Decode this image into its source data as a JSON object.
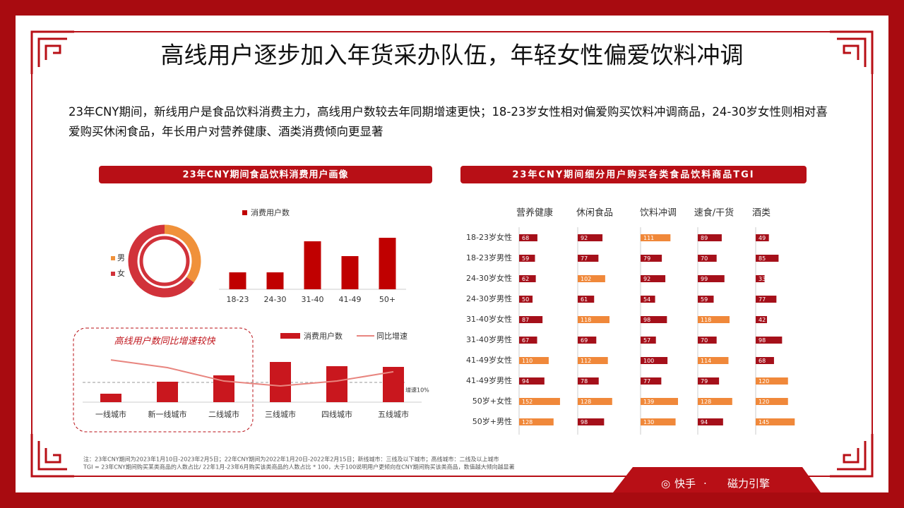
{
  "title": "高线用户逐步加入年货采办队伍，年轻女性偏爱饮料冲调",
  "summary": "23年CNY期间，新线用户是食品饮料消费主力，高线用户数较去年同期增速更快；18-23岁女性相对偏爱购买饮料冲调商品，24-30岁女性则相对喜爱购买休闲食品，年长用户对营养健康、酒类消费倾向更显著",
  "panels": [
    "23年CNY期间食品饮料消费用户画像",
    "23年CNY期间细分用户购买各类食品饮料商品TGI"
  ],
  "footnotes": [
    "注：23年CNY期间为2023年1月10日-2023年2月5日；22年CNY期间为2022年1月20日-2022年2月15日；新线城市：三线及以下城市；高线城市：二线及以上城市",
    "TGI = 23年CNY期间购买某类商品的人数占比/ 22年1月-23年6月购买该类商品的人数占比 * 100，大于100说明用户更倾向在CNY期间购买该类商品，数值越大倾向越显著"
  ],
  "brand": {
    "left": "快手",
    "separator": "·",
    "right": "磁力引擎"
  },
  "chart_data": [
    {
      "type": "pie",
      "categories": [
        "男",
        "女"
      ],
      "values": [
        35,
        65
      ],
      "colors": [
        "#f0913a",
        "#d1323a"
      ],
      "legend": "left"
    },
    {
      "type": "bar",
      "categories": [
        "18-23",
        "24-30",
        "31-40",
        "41-49",
        "50+"
      ],
      "series": [
        {
          "name": "消费用户数",
          "color": "#c00000",
          "values": [
            24,
            24,
            68,
            47,
            73
          ]
        }
      ],
      "ylim": [
        0,
        80
      ]
    },
    {
      "type": "combo",
      "annotation": "高线用户数同比增速较快",
      "categories": [
        "一线城市",
        "新一线城市",
        "二线城市",
        "三线城市",
        "四线城市",
        "五线城市"
      ],
      "series": [
        {
          "name": "消费用户数",
          "type": "bar",
          "color": "#c9171e",
          "values": [
            12,
            29,
            38,
            57,
            51,
            50
          ]
        },
        {
          "name": "同比增速",
          "type": "line",
          "axis": "y2",
          "color": "#e8857f",
          "values": [
            21.4,
            17.5,
            10.7,
            8.2,
            10.7,
            15.4
          ]
        }
      ],
      "ylim": [
        0,
        70
      ],
      "y2lim": [
        0,
        25
      ],
      "reference_line": {
        "value": 10,
        "label": "增速10%"
      }
    },
    {
      "type": "bar-matrix",
      "rows": [
        "18-23岁女性",
        "18-23岁男性",
        "24-30岁女性",
        "24-30岁男性",
        "31-40岁女性",
        "31-40岁男性",
        "41-49岁女性",
        "41-49岁男性",
        "50岁+女性",
        "50岁+男性"
      ],
      "series": [
        {
          "name": "营养健康",
          "values": [
            68,
            59,
            62,
            50,
            87,
            67,
            110,
            94,
            152,
            128
          ]
        },
        {
          "name": "休闲食品",
          "values": [
            92,
            77,
            102,
            61,
            118,
            69,
            112,
            78,
            128,
            98
          ]
        },
        {
          "name": "饮料冲调",
          "values": [
            111,
            79,
            92,
            54,
            98,
            57,
            100,
            77,
            139,
            130
          ]
        },
        {
          "name": "速食/干货",
          "values": [
            89,
            70,
            99,
            59,
            118,
            70,
            114,
            79,
            128,
            94
          ]
        },
        {
          "name": "酒类",
          "values": [
            49,
            85,
            33,
            77,
            42,
            98,
            68,
            120,
            120,
            145
          ]
        }
      ],
      "xlim": [
        0,
        160
      ],
      "highlight_above": 100,
      "colors": {
        "low": "#a5101a",
        "high": "#f0883a"
      }
    }
  ]
}
